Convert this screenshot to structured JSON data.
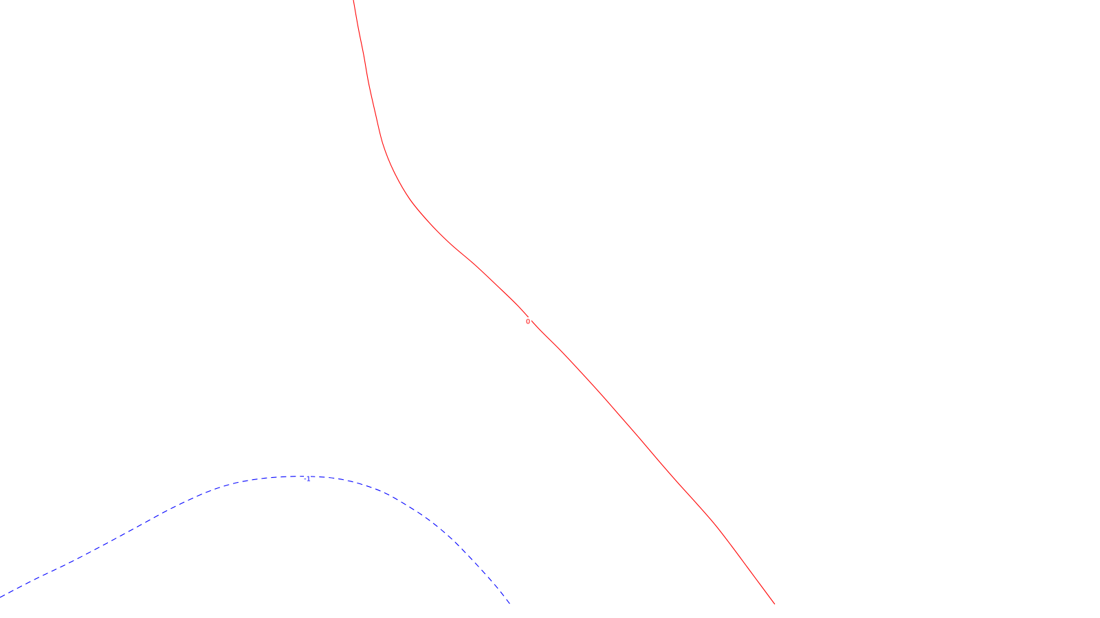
{
  "chart_data": {
    "type": "contour",
    "title": "",
    "xlabel": "",
    "ylabel": "",
    "grid": false,
    "legend": "none",
    "series": [
      {
        "label": "0",
        "color": "#ff0000",
        "style": "solid",
        "points": [
          [
            514,
            0
          ],
          [
            521,
            40
          ],
          [
            529,
            80
          ],
          [
            536,
            120
          ],
          [
            546,
            165
          ],
          [
            557,
            210
          ],
          [
            573,
            250
          ],
          [
            596,
            290
          ],
          [
            625,
            325
          ],
          [
            655,
            355
          ],
          [
            690,
            385
          ],
          [
            722,
            415
          ],
          [
            753,
            445
          ],
          [
            783,
            478
          ],
          [
            815,
            510
          ],
          [
            845,
            542
          ],
          [
            875,
            575
          ],
          [
            903,
            607
          ],
          [
            930,
            638
          ],
          [
            958,
            671
          ],
          [
            985,
            702
          ],
          [
            1013,
            733
          ],
          [
            1040,
            764
          ],
          [
            1064,
            795
          ],
          [
            1087,
            826
          ],
          [
            1107,
            853
          ],
          [
            1127,
            880
          ]
        ],
        "label_at": [
          768,
          468
        ]
      },
      {
        "label": "-1",
        "color": "#0000ff",
        "style": "dashed",
        "points": [
          [
            0,
            870
          ],
          [
            50,
            844
          ],
          [
            100,
            820
          ],
          [
            150,
            794
          ],
          [
            200,
            767
          ],
          [
            250,
            740
          ],
          [
            300,
            717
          ],
          [
            340,
            704
          ],
          [
            380,
            697
          ],
          [
            420,
            694
          ],
          [
            455,
            694
          ],
          [
            490,
            697
          ],
          [
            525,
            705
          ],
          [
            560,
            718
          ],
          [
            595,
            738
          ],
          [
            625,
            758
          ],
          [
            655,
            783
          ],
          [
            680,
            808
          ],
          [
            705,
            835
          ],
          [
            725,
            858
          ],
          [
            742,
            880
          ]
        ],
        "label_at": [
          447,
          697
        ]
      }
    ]
  }
}
